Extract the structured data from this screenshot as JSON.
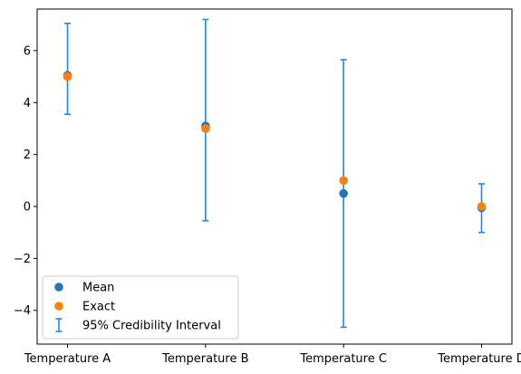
{
  "chart_data": {
    "type": "scatter",
    "title": "",
    "xlabel": "",
    "ylabel": "",
    "categories": [
      "Temperature A",
      "Temperature B",
      "Temperature C",
      "Temperature D"
    ],
    "series": [
      {
        "name": "Mean",
        "marker": "circle",
        "color": "#1f77b4",
        "values": [
          5.05,
          3.1,
          0.5,
          -0.05
        ]
      },
      {
        "name": "Exact",
        "marker": "circle",
        "color": "#ff7f0e",
        "values": [
          5.0,
          3.0,
          1.0,
          0.0
        ]
      }
    ],
    "intervals": {
      "name": "95% Credibility Interval",
      "color": "#1e88e5",
      "lower": [
        3.55,
        -0.55,
        -4.65,
        -1.0
      ],
      "upper": [
        7.05,
        7.2,
        5.65,
        0.87
      ]
    },
    "ylim": [
      -5.3,
      7.6
    ],
    "yticks": [
      -4,
      -2,
      0,
      2,
      4,
      6
    ],
    "grid": false,
    "legend_position": "lower-left"
  }
}
